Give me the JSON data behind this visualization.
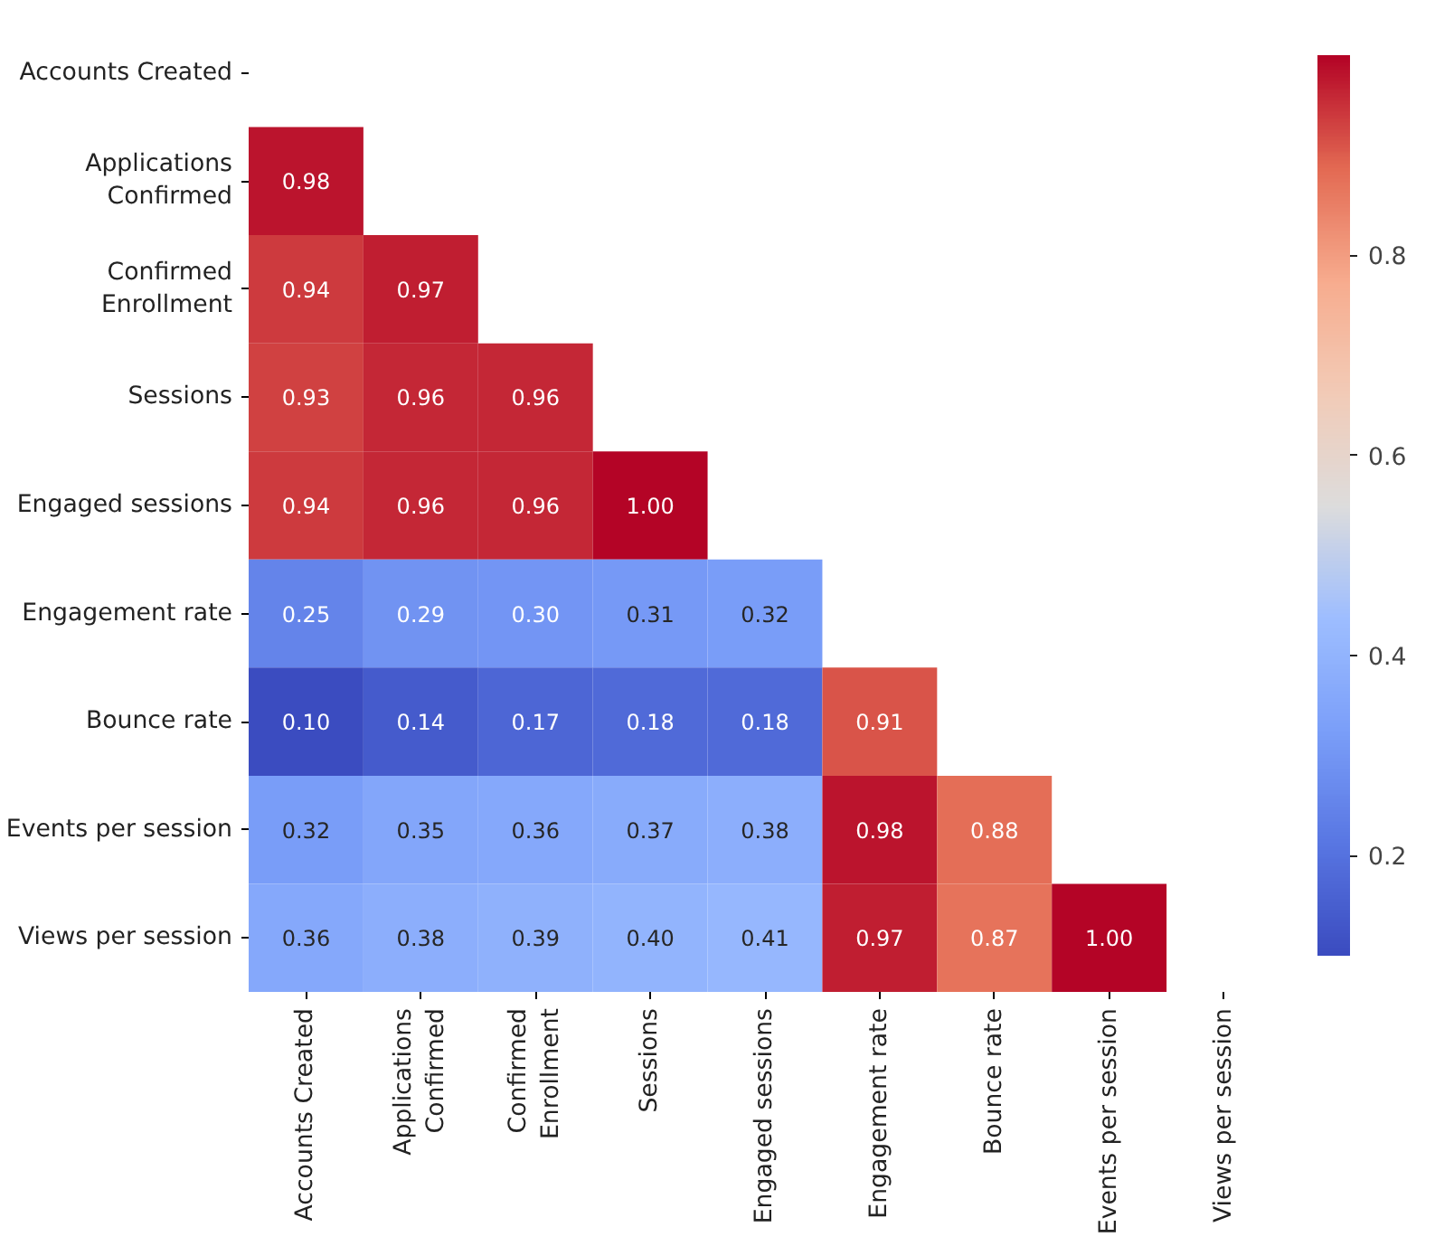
{
  "chart_data": {
    "type": "heatmap",
    "categories": [
      "Accounts Created",
      "Applications\nConfirmed",
      "Confirmed\nEnrollment",
      "Sessions",
      "Engaged sessions",
      "Engagement rate",
      "Bounce rate",
      "Events per session",
      "Views per session"
    ],
    "y_categories": [
      "Accounts Created",
      "Applications\nConfirmed",
      "Confirmed\nEnrollment",
      "Sessions",
      "Engaged sessions",
      "Engagement rate",
      "Bounce rate",
      "Events per session",
      "Views per session"
    ],
    "cells": [
      [
        null,
        null,
        null,
        null,
        null,
        null,
        null,
        null,
        null
      ],
      [
        0.98,
        null,
        null,
        null,
        null,
        null,
        null,
        null,
        null
      ],
      [
        0.94,
        0.97,
        null,
        null,
        null,
        null,
        null,
        null,
        null
      ],
      [
        0.93,
        0.96,
        0.96,
        null,
        null,
        null,
        null,
        null,
        null
      ],
      [
        0.94,
        0.96,
        0.96,
        1.0,
        null,
        null,
        null,
        null,
        null
      ],
      [
        0.25,
        0.29,
        0.3,
        0.31,
        0.32,
        null,
        null,
        null,
        null
      ],
      [
        0.1,
        0.14,
        0.17,
        0.18,
        0.18,
        0.91,
        null,
        null,
        null
      ],
      [
        0.32,
        0.35,
        0.36,
        0.37,
        0.38,
        0.98,
        0.88,
        null,
        null
      ],
      [
        0.36,
        0.38,
        0.39,
        0.4,
        0.41,
        0.97,
        0.87,
        1.0,
        null
      ]
    ],
    "cell_labels": [
      [
        null,
        null,
        null,
        null,
        null,
        null,
        null,
        null,
        null
      ],
      [
        "0.98",
        null,
        null,
        null,
        null,
        null,
        null,
        null,
        null
      ],
      [
        "0.94",
        "0.97",
        null,
        null,
        null,
        null,
        null,
        null,
        null
      ],
      [
        "0.93",
        "0.96",
        "0.96",
        null,
        null,
        null,
        null,
        null,
        null
      ],
      [
        "0.94",
        "0.96",
        "0.96",
        "1.00",
        null,
        null,
        null,
        null,
        null
      ],
      [
        "0.25",
        "0.29",
        "0.30",
        "0.31",
        "0.32",
        null,
        null,
        null,
        null
      ],
      [
        "0.10",
        "0.14",
        "0.17",
        "0.18",
        "0.18",
        "0.91",
        null,
        null,
        null
      ],
      [
        "0.32",
        "0.35",
        "0.36",
        "0.37",
        "0.38",
        "0.98",
        "0.88",
        null,
        null
      ],
      [
        "0.36",
        "0.38",
        "0.39",
        "0.40",
        "0.41",
        "0.97",
        "0.87",
        "1.00",
        null
      ]
    ],
    "clim": [
      0.1,
      1.0
    ],
    "cticks": [
      0.2,
      0.4,
      0.6,
      0.8
    ]
  }
}
